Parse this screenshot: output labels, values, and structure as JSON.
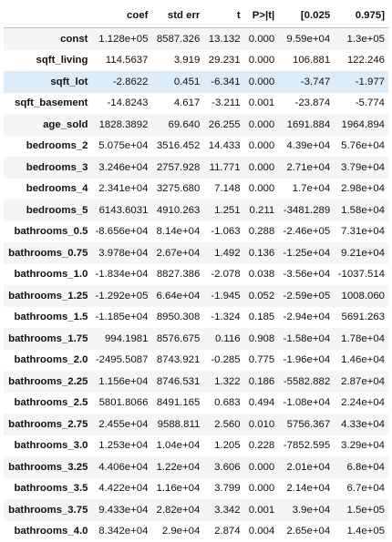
{
  "table": {
    "columns": [
      "",
      "coef",
      "std err",
      "t",
      "P>|t|",
      "[0.025",
      "0.975]"
    ],
    "highlighted_row": "sqft_lot",
    "rows": [
      {
        "label": "const",
        "cells": [
          "1.128e+05",
          "8587.326",
          "13.132",
          "0.000",
          "9.59e+04",
          "1.3e+05"
        ]
      },
      {
        "label": "sqft_living",
        "cells": [
          "114.5637",
          "3.919",
          "29.231",
          "0.000",
          "106.881",
          "122.246"
        ]
      },
      {
        "label": "sqft_lot",
        "cells": [
          "-2.8622",
          "0.451",
          "-6.341",
          "0.000",
          "-3.747",
          "-1.977"
        ]
      },
      {
        "label": "sqft_basement",
        "cells": [
          "-14.8243",
          "4.617",
          "-3.211",
          "0.001",
          "-23.874",
          "-5.774"
        ]
      },
      {
        "label": "age_sold",
        "cells": [
          "1828.3892",
          "69.640",
          "26.255",
          "0.000",
          "1691.884",
          "1964.894"
        ]
      },
      {
        "label": "bedrooms_2",
        "cells": [
          "5.075e+04",
          "3516.452",
          "14.433",
          "0.000",
          "4.39e+04",
          "5.76e+04"
        ]
      },
      {
        "label": "bedrooms_3",
        "cells": [
          "3.246e+04",
          "2757.928",
          "11.771",
          "0.000",
          "2.71e+04",
          "3.79e+04"
        ]
      },
      {
        "label": "bedrooms_4",
        "cells": [
          "2.341e+04",
          "3275.680",
          "7.148",
          "0.000",
          "1.7e+04",
          "2.98e+04"
        ]
      },
      {
        "label": "bedrooms_5",
        "cells": [
          "6143.6031",
          "4910.263",
          "1.251",
          "0.211",
          "-3481.289",
          "1.58e+04"
        ]
      },
      {
        "label": "bathrooms_0.5",
        "cells": [
          "-8.656e+04",
          "8.14e+04",
          "-1.063",
          "0.288",
          "-2.46e+05",
          "7.31e+04"
        ]
      },
      {
        "label": "bathrooms_0.75",
        "cells": [
          "3.978e+04",
          "2.67e+04",
          "1.492",
          "0.136",
          "-1.25e+04",
          "9.21e+04"
        ]
      },
      {
        "label": "bathrooms_1.0",
        "cells": [
          "-1.834e+04",
          "8827.386",
          "-2.078",
          "0.038",
          "-3.56e+04",
          "-1037.514"
        ]
      },
      {
        "label": "bathrooms_1.25",
        "cells": [
          "-1.292e+05",
          "6.64e+04",
          "-1.945",
          "0.052",
          "-2.59e+05",
          "1008.060"
        ]
      },
      {
        "label": "bathrooms_1.5",
        "cells": [
          "-1.185e+04",
          "8950.308",
          "-1.324",
          "0.185",
          "-2.94e+04",
          "5691.263"
        ]
      },
      {
        "label": "bathrooms_1.75",
        "cells": [
          "994.1981",
          "8576.675",
          "0.116",
          "0.908",
          "-1.58e+04",
          "1.78e+04"
        ]
      },
      {
        "label": "bathrooms_2.0",
        "cells": [
          "-2495.5087",
          "8743.921",
          "-0.285",
          "0.775",
          "-1.96e+04",
          "1.46e+04"
        ]
      },
      {
        "label": "bathrooms_2.25",
        "cells": [
          "1.156e+04",
          "8746.531",
          "1.322",
          "0.186",
          "-5582.882",
          "2.87e+04"
        ]
      },
      {
        "label": "bathrooms_2.5",
        "cells": [
          "5801.8066",
          "8491.165",
          "0.683",
          "0.494",
          "-1.08e+04",
          "2.24e+04"
        ]
      },
      {
        "label": "bathrooms_2.75",
        "cells": [
          "2.455e+04",
          "9588.811",
          "2.560",
          "0.010",
          "5756.367",
          "4.33e+04"
        ]
      },
      {
        "label": "bathrooms_3.0",
        "cells": [
          "1.253e+04",
          "1.04e+04",
          "1.205",
          "0.228",
          "-7852.595",
          "3.29e+04"
        ]
      },
      {
        "label": "bathrooms_3.25",
        "cells": [
          "4.406e+04",
          "1.22e+04",
          "3.606",
          "0.000",
          "2.01e+04",
          "6.8e+04"
        ]
      },
      {
        "label": "bathrooms_3.5",
        "cells": [
          "4.422e+04",
          "1.16e+04",
          "3.799",
          "0.000",
          "2.14e+04",
          "6.7e+04"
        ]
      },
      {
        "label": "bathrooms_3.75",
        "cells": [
          "9.433e+04",
          "2.82e+04",
          "3.342",
          "0.001",
          "3.9e+04",
          "1.5e+05"
        ]
      },
      {
        "label": "bathrooms_4.0",
        "cells": [
          "8.342e+04",
          "2.9e+04",
          "2.874",
          "0.004",
          "2.65e+04",
          "1.4e+05"
        ]
      }
    ]
  },
  "colors": {
    "row_odd": "#f5f5f5",
    "row_even": "#ffffff",
    "row_highlight": "#dcecf9",
    "header_rule": "#bdbdbd"
  }
}
